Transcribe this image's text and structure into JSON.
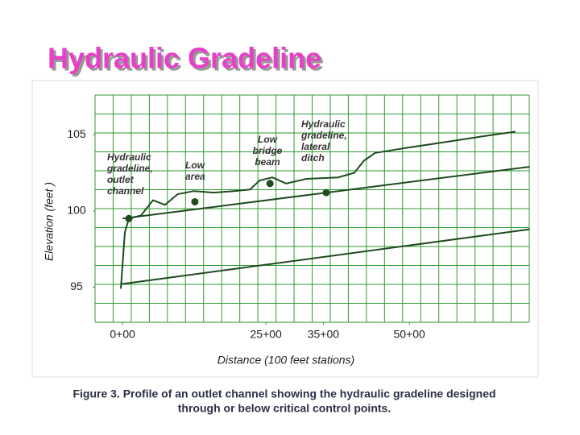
{
  "chart_data": {
    "type": "line",
    "title": "Hydraulic Gradeline",
    "x_label": "Distance (100 feet stations)",
    "y_label": "Elevation (feet )",
    "caption": [
      "Figure 3. Profile of an outlet channel showing the hydraulic gradeline designed",
      "through or below critical control points."
    ],
    "annotations": [
      [
        "Hydraulic",
        "gradeline,",
        "outlet",
        "channel"
      ],
      [
        "Low",
        "area"
      ],
      [
        "Low",
        "bridge",
        "beam"
      ],
      [
        "Hydraulic",
        "gradeline,",
        "lateral",
        "ditch"
      ]
    ],
    "xlim": [
      -4.8,
      70.9
    ],
    "ylim": [
      92.7,
      107.6
    ],
    "xticks": [
      {
        "value": 0,
        "label": "0+00"
      },
      {
        "value": 25,
        "label": "25+00"
      },
      {
        "value": 35,
        "label": "35+00"
      },
      {
        "value": 50,
        "label": "50+00"
      }
    ],
    "yticks": [
      95,
      100,
      105
    ],
    "series": [
      {
        "color": "#1f4a1f",
        "x": [
          -0.3,
          0.4,
          1.1,
          3.2,
          5.3,
          7.4,
          9.6,
          12.4,
          15.9,
          19.4,
          22.2,
          23.9,
          26.1,
          28.5,
          32.0,
          37.6,
          40.4,
          42.1,
          44.0,
          48.9,
          55.9,
          62.9,
          68.5
        ],
        "values": [
          94.9,
          98.6,
          99.5,
          99.7,
          100.7,
          100.4,
          101.1,
          101.3,
          101.2,
          101.3,
          101.4,
          102.0,
          102.2,
          101.8,
          102.1,
          102.2,
          102.5,
          103.3,
          103.8,
          104.1,
          104.5,
          104.9,
          105.2
        ]
      },
      {
        "color": "#1f4a1f",
        "x": [
          0,
          71
        ],
        "values": [
          99.5,
          102.9
        ]
      },
      {
        "color": "#1f4a1f",
        "x": [
          -0.3,
          71
        ],
        "values": [
          95.2,
          98.8
        ]
      },
      {
        "color": "#1f4a1f",
        "marker": true,
        "x": [
          1.1,
          12.6,
          25.7,
          35.5
        ],
        "values": [
          99.5,
          100.6,
          101.8,
          101.2
        ]
      }
    ]
  }
}
